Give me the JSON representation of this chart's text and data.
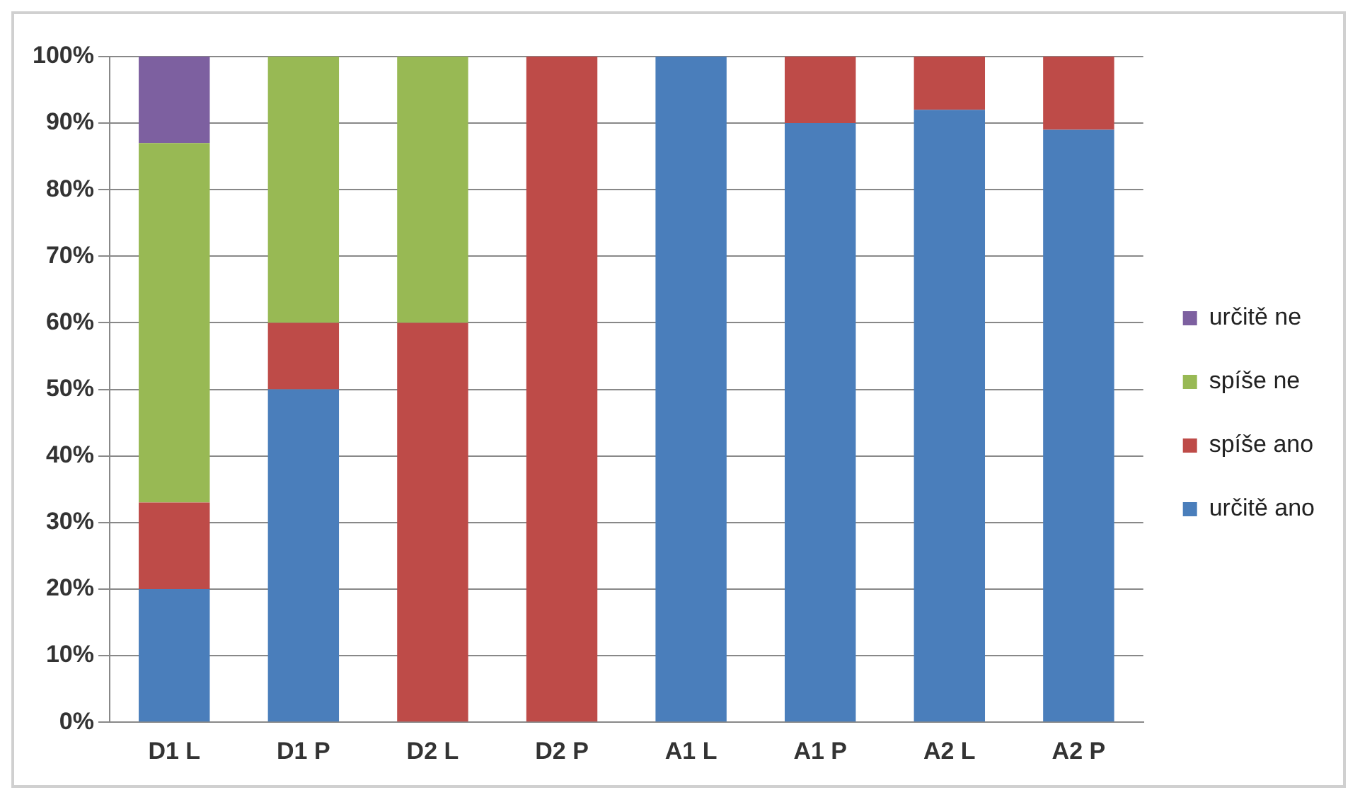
{
  "chart_data": {
    "type": "bar",
    "stacked": true,
    "categories": [
      "D1 L",
      "D1 P",
      "D2 L",
      "D2 P",
      "A1 L",
      "A1 P",
      "A2 L",
      "A2 P"
    ],
    "series": [
      {
        "name": "určitě ano",
        "color": "#4a7ebb",
        "values": [
          20,
          50,
          null,
          null,
          100,
          90,
          92,
          89
        ]
      },
      {
        "name": "spíše ano",
        "color": "#be4b48",
        "values": [
          13,
          10,
          60,
          100,
          null,
          10,
          8,
          11
        ]
      },
      {
        "name": "spíše ne",
        "color": "#98b954",
        "values": [
          54,
          40,
          40,
          null,
          null,
          null,
          null,
          null
        ]
      },
      {
        "name": "určitě ne",
        "color": "#7d60a0",
        "values": [
          13,
          null,
          null,
          null,
          null,
          null,
          null,
          null
        ]
      }
    ],
    "ylim": [
      0,
      100
    ],
    "yticks": [
      {
        "value": 0,
        "label": "0%"
      },
      {
        "value": 10,
        "label": "10%"
      },
      {
        "value": 20,
        "label": "20%"
      },
      {
        "value": 30,
        "label": "30%"
      },
      {
        "value": 40,
        "label": "40%"
      },
      {
        "value": 50,
        "label": "50%"
      },
      {
        "value": 60,
        "label": "60%"
      },
      {
        "value": 70,
        "label": "70%"
      },
      {
        "value": 80,
        "label": "80%"
      },
      {
        "value": 90,
        "label": "90%"
      },
      {
        "value": 100,
        "label": "100%"
      }
    ],
    "grid": "y",
    "legend": "right"
  }
}
